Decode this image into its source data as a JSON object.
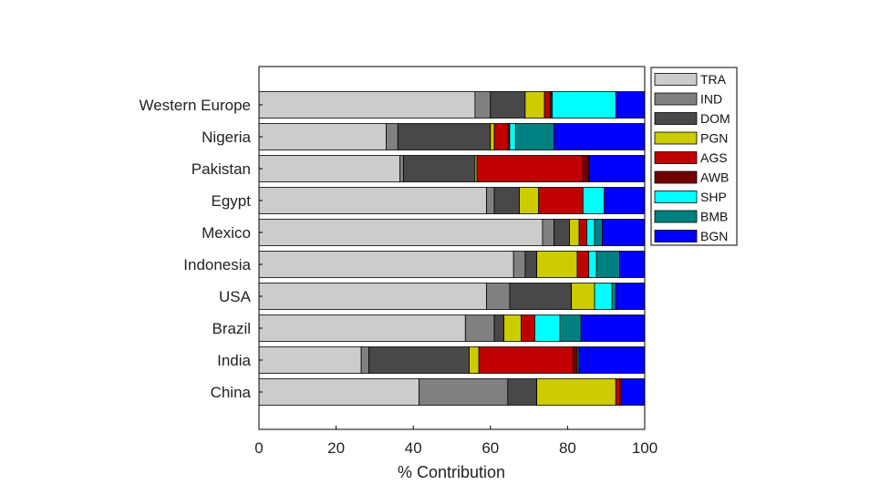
{
  "chart_data": {
    "type": "bar",
    "orientation": "horizontal",
    "stacked": true,
    "title": "",
    "xlabel": "% Contribution",
    "ylabel": "",
    "xlim": [
      0,
      100
    ],
    "xticks": [
      "0",
      "20",
      "40",
      "60",
      "80",
      "100"
    ],
    "grid": false,
    "legend_position": "right",
    "categories": [
      "Western Europe",
      "Nigeria",
      "Pakistan",
      "Egypt",
      "Mexico",
      "Indonesia",
      "USA",
      "Brazil",
      "India",
      "China"
    ],
    "series": [
      {
        "name": "TRA",
        "color": "#cccccc",
        "values": [
          56,
          33,
          36.5,
          59,
          73.5,
          66,
          59,
          53.5,
          26.5,
          41.5
        ]
      },
      {
        "name": "IND",
        "color": "#808080",
        "values": [
          4,
          3,
          1,
          2,
          3,
          3,
          6,
          7.5,
          2,
          23
        ]
      },
      {
        "name": "DOM",
        "color": "#484848",
        "values": [
          9,
          24,
          18.5,
          6.5,
          4,
          3,
          16,
          2.5,
          26,
          7.5
        ]
      },
      {
        "name": "PGN",
        "color": "#cccc00",
        "values": [
          5,
          1,
          0.5,
          5,
          2.5,
          10.5,
          6,
          4.5,
          2.5,
          20.5
        ]
      },
      {
        "name": "AGS",
        "color": "#c00000",
        "values": [
          1.5,
          3.5,
          27.5,
          11.5,
          2,
          3,
          0,
          3.5,
          24.5,
          1
        ]
      },
      {
        "name": "AWB",
        "color": "#700000",
        "values": [
          0.5,
          0.5,
          1.5,
          0,
          0,
          0,
          0,
          0,
          1,
          0.5
        ]
      },
      {
        "name": "SHP",
        "color": "#00ffff",
        "values": [
          16.5,
          1.5,
          0,
          5.5,
          2,
          2,
          4.5,
          6.5,
          0,
          0
        ]
      },
      {
        "name": "BMB",
        "color": "#008080",
        "values": [
          0,
          10,
          0,
          0,
          2,
          6,
          1,
          5.5,
          0.5,
          0
        ]
      },
      {
        "name": "BGN",
        "color": "#0000ff",
        "values": [
          7.5,
          23.5,
          14.5,
          10.5,
          11,
          6.5,
          7.5,
          16.5,
          17,
          6
        ]
      }
    ]
  }
}
